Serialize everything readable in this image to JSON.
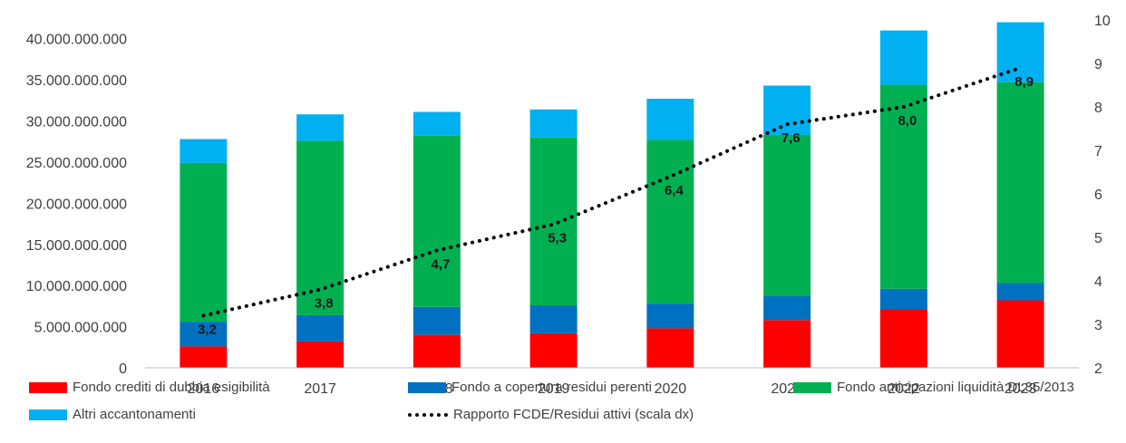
{
  "chart_data": {
    "type": "bar",
    "stacked": true,
    "categories": [
      "2016",
      "2017",
      "2018",
      "2019",
      "2020",
      "2021",
      "2022",
      "2023"
    ],
    "series": [
      {
        "name": "Fondo crediti di dubbia esigibilità",
        "color": "#FF0000",
        "values": [
          2600000000,
          3200000000,
          4000000000,
          4200000000,
          4800000000,
          5800000000,
          7100000000,
          8200000000
        ]
      },
      {
        "name": "Fondo a copertura residui perenti",
        "color": "#0070C0",
        "values": [
          3000000000,
          3200000000,
          3400000000,
          3400000000,
          3000000000,
          2900000000,
          2500000000,
          2100000000
        ]
      },
      {
        "name": "Fondo anticipazioni liquidità DL35/2013",
        "color": "#00B050",
        "values": [
          19300000000,
          21200000000,
          20800000000,
          20400000000,
          19900000000,
          19600000000,
          24800000000,
          24400000000
        ]
      },
      {
        "name": "Altri accantonamenti",
        "color": "#00B0F0",
        "values": [
          2900000000,
          3200000000,
          2900000000,
          3400000000,
          5000000000,
          6000000000,
          6600000000,
          7300000000
        ]
      }
    ],
    "line_series": {
      "name": "Rapporto FCDE/Residui attivi (scala dx)",
      "color": "#000000",
      "axis": "right",
      "values": [
        3.2,
        3.8,
        4.7,
        5.3,
        6.4,
        7.6,
        8.0,
        8.9
      ],
      "labels": [
        "3,2",
        "3,8",
        "4,7",
        "5,3",
        "6,4",
        "7,6",
        "8,0",
        "8,9"
      ]
    },
    "ylim": [
      0,
      42500000000
    ],
    "yticks": [
      {
        "value": 0,
        "label": "0"
      },
      {
        "value": 5000000000,
        "label": "5.000.000.000"
      },
      {
        "value": 10000000000,
        "label": "10.000.000.000"
      },
      {
        "value": 15000000000,
        "label": "15.000.000.000"
      },
      {
        "value": 20000000000,
        "label": "20.000.000.000"
      },
      {
        "value": 25000000000,
        "label": "25.000.000.000"
      },
      {
        "value": 30000000000,
        "label": "30.000.000.000"
      },
      {
        "value": 35000000000,
        "label": "35.000.000.000"
      },
      {
        "value": 40000000000,
        "label": "40.000.000.000"
      }
    ],
    "y2lim": [
      2,
      10
    ],
    "y2ticks": [
      {
        "value": 2,
        "label": "2"
      },
      {
        "value": 3,
        "label": "3"
      },
      {
        "value": 4,
        "label": "4"
      },
      {
        "value": 5,
        "label": "5"
      },
      {
        "value": 6,
        "label": "6"
      },
      {
        "value": 7,
        "label": "7"
      },
      {
        "value": 8,
        "label": "8"
      },
      {
        "value": 9,
        "label": "9"
      },
      {
        "value": 10,
        "label": "10"
      }
    ],
    "grid": false,
    "legend_position": "bottom",
    "title": "",
    "xlabel": "",
    "ylabel": ""
  },
  "legend": {
    "s0": "Fondo crediti di dubbia esigibilità",
    "s1": "Fondo a copertura residui perenti",
    "s2": "Fondo anticipazioni liquidità DL35/2013",
    "s3": "Altri accantonamenti",
    "line": "Rapporto FCDE/Residui attivi (scala dx)"
  }
}
